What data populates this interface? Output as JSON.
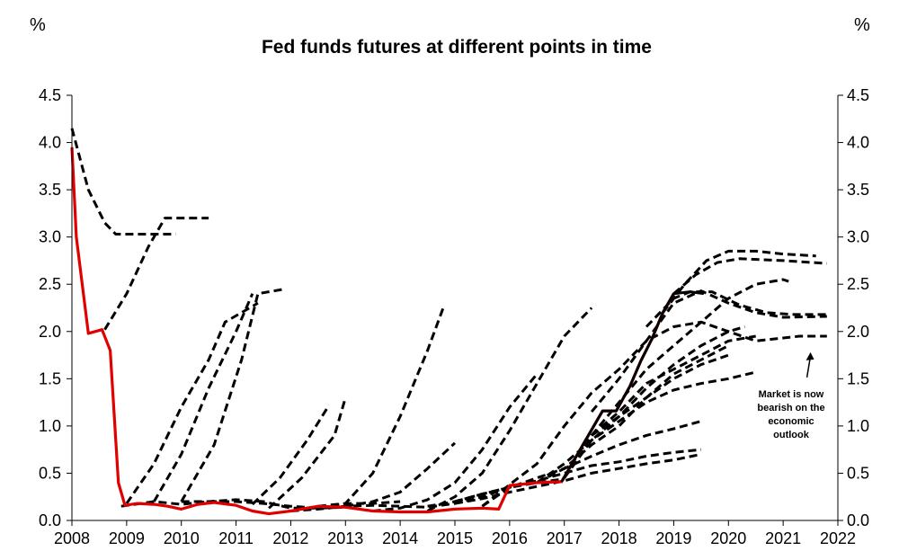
{
  "chart_data": {
    "type": "line",
    "title": "Fed funds futures at different points in time",
    "ylabel_left": "%",
    "ylabel_right": "%",
    "xlim": [
      2008,
      2022
    ],
    "ylim": [
      0,
      4.5
    ],
    "x_ticks": [
      "2008",
      "2009",
      "2010",
      "2011",
      "2012",
      "2013",
      "2014",
      "2015",
      "2016",
      "2017",
      "2018",
      "2019",
      "2020",
      "2021",
      "2022"
    ],
    "y_ticks": [
      "0.0",
      "0.5",
      "1.0",
      "1.5",
      "2.0",
      "2.5",
      "3.0",
      "3.5",
      "4.0",
      "4.5"
    ],
    "annotation": {
      "lines": [
        "Market is now",
        "bearish on the",
        "economic",
        "outlook"
      ],
      "arrow_to": [
        2021.5,
        1.78
      ]
    },
    "series": [
      {
        "style": "solid",
        "color": "#e00000",
        "points": [
          [
            2008.0,
            3.95
          ],
          [
            2008.08,
            3.0
          ],
          [
            2008.3,
            1.98
          ],
          [
            2008.55,
            2.02
          ],
          [
            2008.7,
            1.8
          ],
          [
            2008.85,
            0.4
          ],
          [
            2008.97,
            0.16
          ],
          [
            2009.2,
            0.18
          ],
          [
            2009.5,
            0.17
          ],
          [
            2009.75,
            0.15
          ],
          [
            2010.0,
            0.12
          ],
          [
            2010.3,
            0.17
          ],
          [
            2010.6,
            0.19
          ],
          [
            2011.0,
            0.16
          ],
          [
            2011.3,
            0.1
          ],
          [
            2011.6,
            0.07
          ],
          [
            2012.0,
            0.1
          ],
          [
            2012.5,
            0.15
          ],
          [
            2013.0,
            0.14
          ],
          [
            2013.5,
            0.1
          ],
          [
            2014.0,
            0.09
          ],
          [
            2014.5,
            0.09
          ],
          [
            2015.0,
            0.12
          ],
          [
            2015.5,
            0.13
          ],
          [
            2015.8,
            0.12
          ],
          [
            2016.0,
            0.37
          ],
          [
            2016.5,
            0.4
          ],
          [
            2016.95,
            0.41
          ],
          [
            2017.2,
            0.66
          ],
          [
            2017.45,
            0.91
          ],
          [
            2017.7,
            1.16
          ],
          [
            2017.95,
            1.16
          ],
          [
            2018.2,
            1.42
          ],
          [
            2018.4,
            1.69
          ],
          [
            2018.6,
            1.92
          ],
          [
            2018.8,
            2.2
          ],
          [
            2019.0,
            2.4
          ]
        ]
      },
      {
        "style": "solid",
        "color": "#000000",
        "points": [
          [
            2016.95,
            0.41
          ],
          [
            2017.2,
            0.66
          ],
          [
            2017.45,
            0.91
          ],
          [
            2017.7,
            1.16
          ],
          [
            2017.95,
            1.16
          ],
          [
            2018.2,
            1.42
          ],
          [
            2018.4,
            1.69
          ],
          [
            2018.6,
            1.92
          ],
          [
            2018.8,
            2.2
          ],
          [
            2019.0,
            2.4
          ],
          [
            2019.3,
            2.42
          ],
          [
            2019.55,
            2.4
          ]
        ]
      },
      {
        "style": "dashed",
        "points": [
          [
            2008.0,
            4.15
          ],
          [
            2008.3,
            3.5
          ],
          [
            2008.6,
            3.15
          ],
          [
            2008.8,
            3.03
          ],
          [
            2009.3,
            3.03
          ],
          [
            2009.9,
            3.03
          ]
        ]
      },
      {
        "style": "dashed",
        "points": [
          [
            2008.6,
            2.02
          ],
          [
            2009.0,
            2.4
          ],
          [
            2009.4,
            2.9
          ],
          [
            2009.7,
            3.2
          ],
          [
            2010.5,
            3.2
          ]
        ]
      },
      {
        "style": "dashed",
        "points": [
          [
            2009.0,
            0.18
          ],
          [
            2009.5,
            0.6
          ],
          [
            2010.0,
            1.2
          ],
          [
            2010.5,
            1.7
          ],
          [
            2010.8,
            2.1
          ],
          [
            2011.4,
            2.3
          ]
        ]
      },
      {
        "style": "dashed",
        "points": [
          [
            2009.5,
            0.2
          ],
          [
            2010.0,
            0.7
          ],
          [
            2010.5,
            1.4
          ],
          [
            2011.0,
            2.0
          ],
          [
            2011.3,
            2.4
          ]
        ]
      },
      {
        "style": "dashed",
        "points": [
          [
            2010.0,
            0.2
          ],
          [
            2010.6,
            0.8
          ],
          [
            2011.1,
            1.7
          ],
          [
            2011.4,
            2.4
          ],
          [
            2011.9,
            2.45
          ]
        ]
      },
      {
        "style": "dashed",
        "points": [
          [
            2011.3,
            0.17
          ],
          [
            2011.8,
            0.45
          ],
          [
            2012.3,
            0.85
          ],
          [
            2012.7,
            1.22
          ]
        ]
      },
      {
        "style": "dashed",
        "points": [
          [
            2011.6,
            0.13
          ],
          [
            2012.2,
            0.45
          ],
          [
            2012.8,
            0.9
          ],
          [
            2013.0,
            1.3
          ]
        ]
      },
      {
        "style": "dashed",
        "points": [
          [
            2012.5,
            0.15
          ],
          [
            2013.0,
            0.18
          ],
          [
            2013.5,
            0.5
          ],
          [
            2014.0,
            1.1
          ],
          [
            2014.5,
            1.8
          ],
          [
            2014.8,
            2.27
          ]
        ]
      },
      {
        "style": "dashed",
        "points": [
          [
            2013.0,
            0.15
          ],
          [
            2013.5,
            0.2
          ],
          [
            2014.0,
            0.3
          ],
          [
            2014.5,
            0.55
          ],
          [
            2015.0,
            0.82
          ]
        ]
      },
      {
        "style": "dashed",
        "points": [
          [
            2013.5,
            0.1
          ],
          [
            2014.0,
            0.13
          ],
          [
            2014.5,
            0.22
          ],
          [
            2015.0,
            0.4
          ],
          [
            2015.5,
            0.75
          ],
          [
            2016.0,
            1.2
          ],
          [
            2016.5,
            1.55
          ]
        ]
      },
      {
        "style": "dashed",
        "points": [
          [
            2014.5,
            0.1
          ],
          [
            2015.0,
            0.25
          ],
          [
            2015.5,
            0.5
          ],
          [
            2016.0,
            0.95
          ],
          [
            2016.5,
            1.45
          ],
          [
            2017.0,
            1.95
          ],
          [
            2017.5,
            2.25
          ]
        ]
      },
      {
        "style": "dashed",
        "points": [
          [
            2015.5,
            0.15
          ],
          [
            2016.0,
            0.38
          ],
          [
            2016.5,
            0.6
          ],
          [
            2017.0,
            1.0
          ],
          [
            2017.5,
            1.35
          ],
          [
            2018.0,
            1.6
          ],
          [
            2018.5,
            1.9
          ],
          [
            2019.0,
            2.05
          ],
          [
            2019.5,
            2.1
          ],
          [
            2020.0,
            2.0
          ],
          [
            2020.5,
            1.9
          ],
          [
            2021.3,
            1.95
          ],
          [
            2021.8,
            1.95
          ]
        ]
      },
      {
        "style": "dashed",
        "points": [
          [
            2017.5,
            1.15
          ],
          [
            2018.0,
            1.5
          ],
          [
            2018.5,
            1.9
          ],
          [
            2019.0,
            2.3
          ],
          [
            2019.5,
            2.43
          ],
          [
            2020.0,
            2.3
          ],
          [
            2020.5,
            2.2
          ],
          [
            2021.0,
            2.15
          ],
          [
            2021.8,
            2.16
          ]
        ]
      },
      {
        "style": "dashed",
        "points": [
          [
            2018.5,
            2.05
          ],
          [
            2019.0,
            2.35
          ],
          [
            2019.3,
            2.42
          ],
          [
            2019.7,
            2.42
          ],
          [
            2020.2,
            2.28
          ],
          [
            2020.7,
            2.2
          ],
          [
            2021.2,
            2.18
          ],
          [
            2021.8,
            2.18
          ]
        ]
      },
      {
        "style": "dashed",
        "points": [
          [
            2018.8,
            2.2
          ],
          [
            2019.2,
            2.5
          ],
          [
            2019.6,
            2.75
          ],
          [
            2020.0,
            2.85
          ],
          [
            2020.5,
            2.85
          ],
          [
            2021.0,
            2.82
          ],
          [
            2021.6,
            2.8
          ]
        ]
      },
      {
        "style": "dashed",
        "points": [
          [
            2019.0,
            2.4
          ],
          [
            2019.4,
            2.6
          ],
          [
            2019.8,
            2.73
          ],
          [
            2020.2,
            2.77
          ],
          [
            2021.0,
            2.75
          ],
          [
            2021.8,
            2.72
          ]
        ]
      },
      {
        "style": "dashed",
        "points": [
          [
            2017.0,
            0.45
          ],
          [
            2017.5,
            0.9
          ],
          [
            2018.0,
            1.25
          ],
          [
            2018.5,
            1.6
          ],
          [
            2019.0,
            1.85
          ],
          [
            2019.5,
            2.1
          ],
          [
            2020.0,
            2.35
          ],
          [
            2020.5,
            2.5
          ],
          [
            2021.0,
            2.55
          ],
          [
            2021.1,
            2.53
          ]
        ]
      },
      {
        "style": "dashed",
        "points": [
          [
            2017.0,
            0.45
          ],
          [
            2017.5,
            0.85
          ],
          [
            2018.0,
            1.1
          ],
          [
            2018.5,
            1.4
          ],
          [
            2019.0,
            1.65
          ],
          [
            2019.5,
            1.85
          ],
          [
            2020.0,
            2.0
          ],
          [
            2020.3,
            2.05
          ]
        ]
      },
      {
        "style": "dashed",
        "points": [
          [
            2017.5,
            0.9
          ],
          [
            2018.0,
            1.15
          ],
          [
            2018.5,
            1.45
          ],
          [
            2019.0,
            1.6
          ],
          [
            2019.5,
            1.75
          ],
          [
            2020.0,
            1.9
          ],
          [
            2020.5,
            1.95
          ]
        ]
      },
      {
        "style": "dashed",
        "points": [
          [
            2016.5,
            0.4
          ],
          [
            2017.0,
            0.55
          ],
          [
            2017.5,
            0.8
          ],
          [
            2018.0,
            1.0
          ],
          [
            2018.5,
            1.3
          ],
          [
            2019.0,
            1.55
          ],
          [
            2019.5,
            1.7
          ],
          [
            2020.0,
            1.85
          ]
        ]
      },
      {
        "style": "dashed",
        "points": [
          [
            2017.5,
            0.9
          ],
          [
            2018.0,
            1.1
          ],
          [
            2018.5,
            1.3
          ],
          [
            2019.0,
            1.5
          ],
          [
            2019.5,
            1.65
          ],
          [
            2020.0,
            1.75
          ]
        ]
      },
      {
        "style": "dashed",
        "points": [
          [
            2016.5,
            0.4
          ],
          [
            2017.0,
            0.6
          ],
          [
            2017.5,
            0.85
          ],
          [
            2018.0,
            1.05
          ],
          [
            2018.5,
            1.25
          ],
          [
            2019.0,
            1.38
          ],
          [
            2019.5,
            1.45
          ],
          [
            2020.0,
            1.5
          ],
          [
            2020.5,
            1.57
          ]
        ]
      },
      {
        "style": "dashed",
        "points": [
          [
            2015.5,
            0.15
          ],
          [
            2016.0,
            0.35
          ],
          [
            2016.5,
            0.45
          ],
          [
            2017.0,
            0.55
          ],
          [
            2017.5,
            0.68
          ],
          [
            2018.0,
            0.8
          ],
          [
            2018.5,
            0.9
          ],
          [
            2019.0,
            0.97
          ],
          [
            2019.5,
            1.05
          ]
        ]
      },
      {
        "style": "dashed",
        "points": [
          [
            2015.0,
            0.2
          ],
          [
            2015.5,
            0.28
          ],
          [
            2016.0,
            0.35
          ],
          [
            2016.5,
            0.42
          ],
          [
            2017.0,
            0.5
          ],
          [
            2017.5,
            0.58
          ],
          [
            2018.0,
            0.62
          ],
          [
            2018.5,
            0.68
          ],
          [
            2019.0,
            0.72
          ],
          [
            2019.5,
            0.75
          ]
        ]
      },
      {
        "style": "dashed",
        "points": [
          [
            2015.0,
            0.18
          ],
          [
            2015.5,
            0.23
          ],
          [
            2016.0,
            0.3
          ],
          [
            2016.5,
            0.36
          ],
          [
            2017.0,
            0.42
          ],
          [
            2017.5,
            0.5
          ],
          [
            2018.0,
            0.55
          ],
          [
            2018.5,
            0.6
          ],
          [
            2019.0,
            0.64
          ],
          [
            2019.5,
            0.7
          ]
        ]
      },
      {
        "style": "dashed",
        "points": [
          [
            2014.5,
            0.15
          ],
          [
            2015.0,
            0.2
          ],
          [
            2015.5,
            0.28
          ],
          [
            2016.0,
            0.35
          ],
          [
            2016.5,
            0.4
          ],
          [
            2017.0,
            0.44
          ]
        ]
      },
      {
        "style": "dashed",
        "points": [
          [
            2008.9,
            0.15
          ],
          [
            2009.5,
            0.2
          ],
          [
            2010.0,
            0.17
          ],
          [
            2010.5,
            0.2
          ],
          [
            2011.0,
            0.2
          ],
          [
            2011.5,
            0.18
          ],
          [
            2012.0,
            0.15
          ],
          [
            2012.5,
            0.13
          ],
          [
            2013.0,
            0.14
          ]
        ]
      },
      {
        "style": "dashed",
        "points": [
          [
            2010.0,
            0.2
          ],
          [
            2010.5,
            0.2
          ],
          [
            2011.0,
            0.22
          ],
          [
            2011.5,
            0.2
          ],
          [
            2012.0,
            0.13
          ],
          [
            2012.5,
            0.13
          ],
          [
            2013.0,
            0.18
          ],
          [
            2013.5,
            0.18
          ],
          [
            2014.0,
            0.2
          ]
        ]
      },
      {
        "style": "dashed",
        "points": [
          [
            2012.0,
            0.1
          ],
          [
            2012.5,
            0.12
          ],
          [
            2013.0,
            0.15
          ],
          [
            2013.5,
            0.16
          ],
          [
            2014.0,
            0.15
          ],
          [
            2014.5,
            0.14
          ],
          [
            2015.0,
            0.18
          ],
          [
            2015.5,
            0.25
          ],
          [
            2016.0,
            0.35
          ]
        ]
      }
    ]
  }
}
